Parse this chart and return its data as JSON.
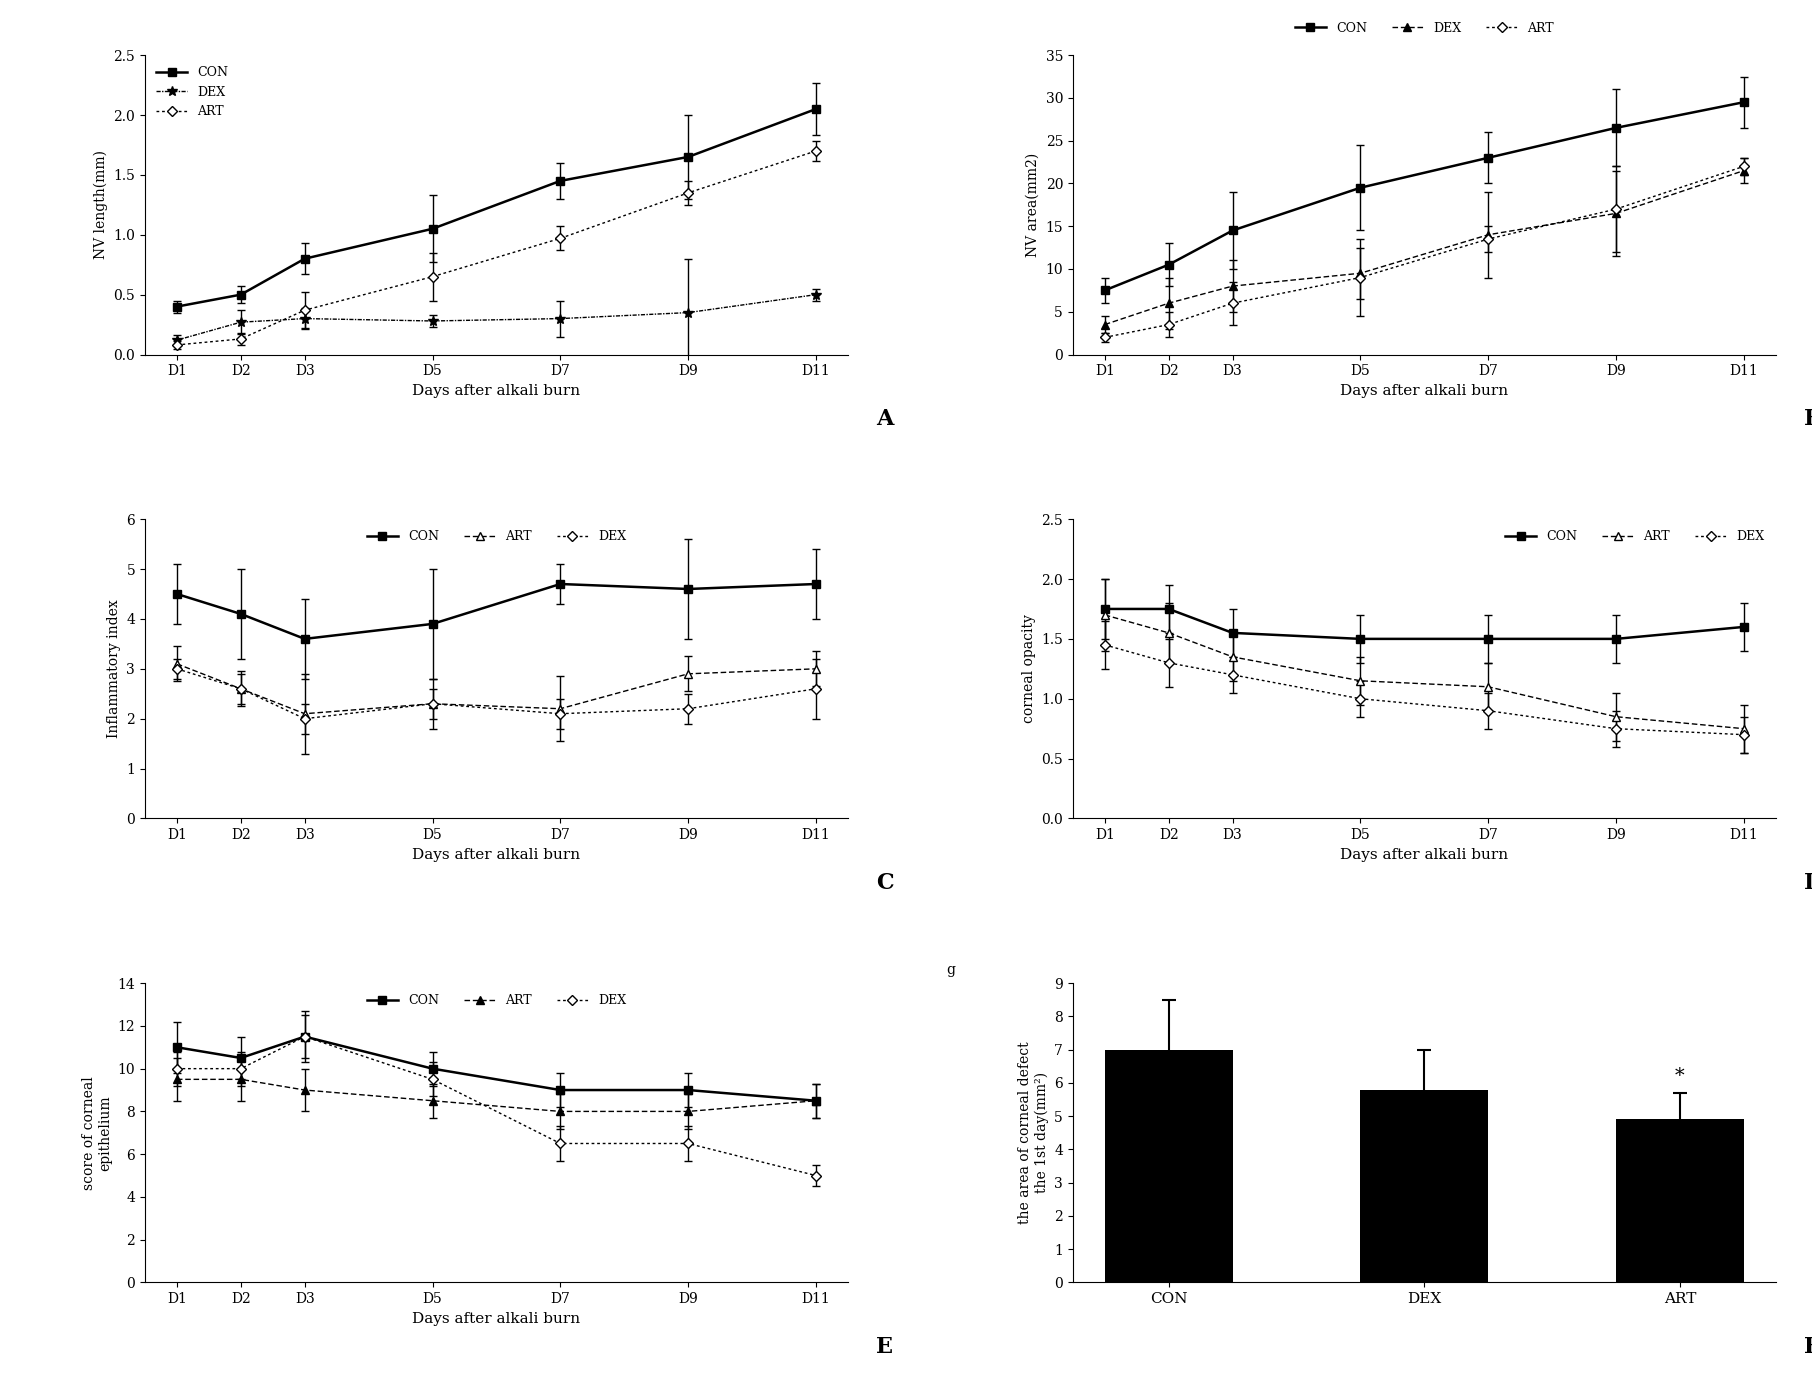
{
  "days": [
    "D1",
    "D2",
    "D3",
    "D5",
    "D7",
    "D9",
    "D11"
  ],
  "days_x": [
    1,
    2,
    3,
    5,
    7,
    9,
    11
  ],
  "panelA_ylabel": "NV length(mm)",
  "panelA_xlabel": "Days after alkali burn",
  "panelA_ylim": [
    0,
    2.5
  ],
  "panelA_yticks": [
    0,
    0.5,
    1.0,
    1.5,
    2.0,
    2.5
  ],
  "panelA_CON": [
    0.4,
    0.5,
    0.8,
    1.05,
    1.45,
    1.65,
    2.05
  ],
  "panelA_DEX": [
    0.12,
    0.27,
    0.3,
    0.28,
    0.3,
    0.35,
    0.5
  ],
  "panelA_ART": [
    0.08,
    0.13,
    0.37,
    0.65,
    0.97,
    1.35,
    1.7
  ],
  "panelA_CON_err": [
    0.05,
    0.07,
    0.13,
    0.28,
    0.15,
    0.35,
    0.22
  ],
  "panelA_DEX_err": [
    0.04,
    0.1,
    0.09,
    0.05,
    0.15,
    0.45,
    0.05
  ],
  "panelA_ART_err": [
    0.03,
    0.05,
    0.15,
    0.2,
    0.1,
    0.1,
    0.08
  ],
  "panelB_ylabel": "NV area(mm2)",
  "panelB_xlabel": "Days after alkali burn",
  "panelB_ylim": [
    0,
    35
  ],
  "panelB_yticks": [
    0,
    5,
    10,
    15,
    20,
    25,
    30,
    35
  ],
  "panelB_CON": [
    7.5,
    10.5,
    14.5,
    19.5,
    23.0,
    26.5,
    29.5
  ],
  "panelB_DEX": [
    3.5,
    6.0,
    8.0,
    9.5,
    14.0,
    16.5,
    21.5
  ],
  "panelB_ART": [
    2.0,
    3.5,
    6.0,
    9.0,
    13.5,
    17.0,
    22.0
  ],
  "panelB_CON_err": [
    1.5,
    2.5,
    4.5,
    5.0,
    3.0,
    4.5,
    3.0
  ],
  "panelB_DEX_err": [
    1.0,
    3.0,
    3.0,
    3.0,
    5.0,
    5.0,
    1.5
  ],
  "panelB_ART_err": [
    0.5,
    1.5,
    2.5,
    4.5,
    1.5,
    5.0,
    1.0
  ],
  "panelC_ylabel": "Inflammatory index",
  "panelC_xlabel": "Days after alkali burn",
  "panelC_ylim": [
    0,
    6
  ],
  "panelC_yticks": [
    0,
    1,
    2,
    3,
    4,
    5,
    6
  ],
  "panelC_CON": [
    4.5,
    4.1,
    3.6,
    3.9,
    4.7,
    4.6,
    4.7
  ],
  "panelC_ART": [
    3.1,
    2.6,
    2.1,
    2.3,
    2.2,
    2.9,
    3.0
  ],
  "panelC_DEX": [
    3.0,
    2.6,
    2.0,
    2.3,
    2.1,
    2.2,
    2.6
  ],
  "panelC_CON_err": [
    0.6,
    0.9,
    0.8,
    1.1,
    0.4,
    1.0,
    0.7
  ],
  "panelC_ART_err": [
    0.35,
    0.35,
    0.8,
    0.5,
    0.65,
    0.35,
    0.35
  ],
  "panelC_DEX_err": [
    0.2,
    0.3,
    0.3,
    0.3,
    0.3,
    0.3,
    0.6
  ],
  "panelD_ylabel": "corneal opacity",
  "panelD_xlabel": "Days after alkali burn",
  "panelD_ylim": [
    0,
    2.5
  ],
  "panelD_yticks": [
    0,
    0.5,
    1.0,
    1.5,
    2.0,
    2.5
  ],
  "panelD_CON": [
    1.75,
    1.75,
    1.55,
    1.5,
    1.5,
    1.5,
    1.6
  ],
  "panelD_ART": [
    1.7,
    1.55,
    1.35,
    1.15,
    1.1,
    0.85,
    0.75
  ],
  "panelD_DEX": [
    1.45,
    1.3,
    1.2,
    1.0,
    0.9,
    0.75,
    0.7
  ],
  "panelD_CON_err": [
    0.25,
    0.2,
    0.2,
    0.2,
    0.2,
    0.2,
    0.2
  ],
  "panelD_ART_err": [
    0.3,
    0.25,
    0.2,
    0.2,
    0.2,
    0.2,
    0.2
  ],
  "panelD_DEX_err": [
    0.2,
    0.2,
    0.15,
    0.15,
    0.15,
    0.15,
    0.15
  ],
  "panelE_ylabel": "score of corneal\nepithelium",
  "panelE_xlabel": "Days after alkali burn",
  "panelE_ylim": [
    0,
    14
  ],
  "panelE_yticks": [
    0,
    2,
    4,
    6,
    8,
    10,
    12,
    14
  ],
  "panelE_CON": [
    11.0,
    10.5,
    11.5,
    10.0,
    9.0,
    9.0,
    8.5
  ],
  "panelE_ART": [
    9.5,
    9.5,
    9.0,
    8.5,
    8.0,
    8.0,
    8.5
  ],
  "panelE_DEX": [
    10.0,
    10.0,
    11.5,
    9.5,
    6.5,
    6.5,
    5.0
  ],
  "panelE_CON_err": [
    1.2,
    1.0,
    1.2,
    0.8,
    0.8,
    0.8,
    0.8
  ],
  "panelE_ART_err": [
    1.0,
    1.0,
    1.0,
    0.8,
    0.8,
    0.8,
    0.8
  ],
  "panelE_DEX_err": [
    0.8,
    0.8,
    1.0,
    0.8,
    0.8,
    0.8,
    0.5
  ],
  "panelF_ylabel": "the area of corneal defect\nthe 1st day(mm²)",
  "panelF_categories": [
    "CON",
    "DEX",
    "ART"
  ],
  "panelF_values": [
    7.0,
    5.8,
    4.9
  ],
  "panelF_errors": [
    1.5,
    1.2,
    0.8
  ],
  "panelF_ylim": [
    0,
    9
  ],
  "panelF_yticks": [
    0,
    1,
    2,
    3,
    4,
    5,
    6,
    7,
    8,
    9
  ],
  "label_A": "A",
  "label_B": "B",
  "label_C": "C",
  "label_D": "D",
  "label_E": "E",
  "label_F": "F"
}
